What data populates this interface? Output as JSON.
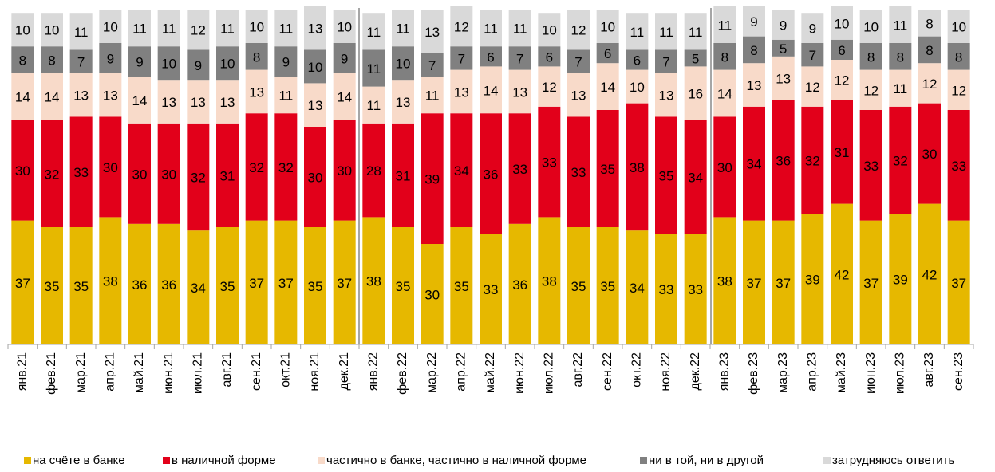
{
  "chart_data": {
    "type": "stacked_bar",
    "categories": [
      "янв.21",
      "фев.21",
      "мар.21",
      "апр.21",
      "май.21",
      "июн.21",
      "июл.21",
      "авг.21",
      "сен.21",
      "окт.21",
      "ноя.21",
      "дек.21",
      "янв.22",
      "фев.22",
      "мар.22",
      "апр.22",
      "май.22",
      "июн.22",
      "июл.22",
      "авг.22",
      "сен.22",
      "окт.22",
      "ноя.22",
      "дек.22",
      "янв.23",
      "фев.23",
      "мар.23",
      "апр.23",
      "май.23",
      "июн.23",
      "июл.23",
      "авг.23",
      "сен.23"
    ],
    "series": [
      {
        "name": "на счёте в банке",
        "color": "#e6b800",
        "values": [
          37,
          35,
          35,
          38,
          36,
          36,
          34,
          35,
          37,
          37,
          35,
          37,
          38,
          35,
          30,
          35,
          33,
          36,
          38,
          35,
          35,
          34,
          33,
          33,
          38,
          37,
          37,
          39,
          42,
          37,
          39,
          42,
          37
        ]
      },
      {
        "name": "в наличной форме",
        "color": "#e2001a",
        "values": [
          30,
          32,
          33,
          30,
          30,
          30,
          32,
          31,
          32,
          32,
          30,
          30,
          28,
          31,
          39,
          34,
          36,
          33,
          33,
          33,
          35,
          38,
          35,
          34,
          30,
          34,
          36,
          32,
          31,
          33,
          32,
          30,
          33
        ]
      },
      {
        "name": "частично в банке, частично в наличной форме",
        "color": "#f8dac9",
        "values": [
          14,
          14,
          13,
          13,
          14,
          13,
          13,
          13,
          13,
          11,
          13,
          14,
          11,
          13,
          11,
          13,
          14,
          13,
          12,
          13,
          14,
          10,
          13,
          16,
          14,
          13,
          13,
          12,
          12,
          12,
          11,
          12,
          12
        ]
      },
      {
        "name": "ни в той, ни в другой",
        "color": "#808080",
        "values": [
          8,
          8,
          7,
          9,
          9,
          10,
          9,
          10,
          8,
          9,
          10,
          9,
          11,
          10,
          7,
          7,
          6,
          7,
          6,
          7,
          6,
          6,
          7,
          5,
          8,
          8,
          5,
          7,
          6,
          8,
          8,
          8,
          8
        ]
      },
      {
        "name": "затрудняюсь ответить",
        "color": "#d9d9d9",
        "values": [
          10,
          10,
          11,
          10,
          11,
          11,
          12,
          11,
          10,
          11,
          13,
          10,
          11,
          11,
          13,
          12,
          11,
          11,
          10,
          12,
          10,
          11,
          11,
          11,
          11,
          9,
          9,
          9,
          10,
          10,
          11,
          8,
          10
        ]
      }
    ]
  }
}
